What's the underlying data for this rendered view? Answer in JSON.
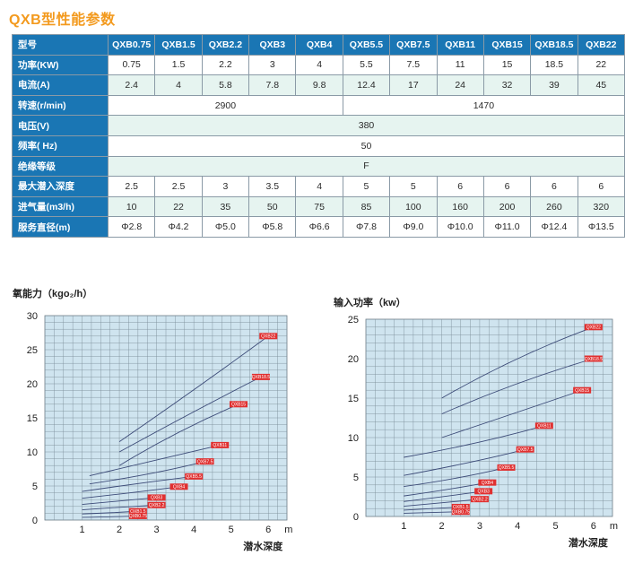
{
  "title": "QXB型性能参数",
  "table": {
    "header": [
      "型号",
      "QXB0.75",
      "QXB1.5",
      "QXB2.2",
      "QXB3",
      "QXB4",
      "QXB5.5",
      "QXB7.5",
      "QXB11",
      "QXB15",
      "QXB18.5",
      "QXB22"
    ],
    "rows": [
      {
        "label": "功率(KW)",
        "cells": [
          {
            "text": "0.75",
            "span": 1
          },
          {
            "text": "1.5",
            "span": 1
          },
          {
            "text": "2.2",
            "span": 1
          },
          {
            "text": "3",
            "span": 1
          },
          {
            "text": "4",
            "span": 1
          },
          {
            "text": "5.5",
            "span": 1
          },
          {
            "text": "7.5",
            "span": 1
          },
          {
            "text": "11",
            "span": 1
          },
          {
            "text": "15",
            "span": 1
          },
          {
            "text": "18.5",
            "span": 1
          },
          {
            "text": "22",
            "span": 1
          }
        ]
      },
      {
        "label": "电流(A)",
        "cells": [
          {
            "text": "2.4",
            "span": 1
          },
          {
            "text": "4",
            "span": 1
          },
          {
            "text": "5.8",
            "span": 1
          },
          {
            "text": "7.8",
            "span": 1
          },
          {
            "text": "9.8",
            "span": 1
          },
          {
            "text": "12.4",
            "span": 1
          },
          {
            "text": "17",
            "span": 1
          },
          {
            "text": "24",
            "span": 1
          },
          {
            "text": "32",
            "span": 1
          },
          {
            "text": "39",
            "span": 1
          },
          {
            "text": "45",
            "span": 1
          }
        ]
      },
      {
        "label": "转速(r/min)",
        "cells": [
          {
            "text": "2900",
            "span": 5
          },
          {
            "text": "1470",
            "span": 6
          }
        ]
      },
      {
        "label": "电压(V)",
        "cells": [
          {
            "text": "380",
            "span": 11
          }
        ]
      },
      {
        "label": "频率( Hz)",
        "cells": [
          {
            "text": "50",
            "span": 11
          }
        ]
      },
      {
        "label": "绝缘等级",
        "cells": [
          {
            "text": "F",
            "span": 11
          }
        ]
      },
      {
        "label": "最大潜入深度",
        "cells": [
          {
            "text": "2.5",
            "span": 1
          },
          {
            "text": "2.5",
            "span": 1
          },
          {
            "text": "3",
            "span": 1
          },
          {
            "text": "3.5",
            "span": 1
          },
          {
            "text": "4",
            "span": 1
          },
          {
            "text": "5",
            "span": 1
          },
          {
            "text": "5",
            "span": 1
          },
          {
            "text": "6",
            "span": 1
          },
          {
            "text": "6",
            "span": 1
          },
          {
            "text": "6",
            "span": 1
          },
          {
            "text": "6",
            "span": 1
          }
        ]
      },
      {
        "label": "进气量(m3/h)",
        "cells": [
          {
            "text": "10",
            "span": 1
          },
          {
            "text": "22",
            "span": 1
          },
          {
            "text": "35",
            "span": 1
          },
          {
            "text": "50",
            "span": 1
          },
          {
            "text": "75",
            "span": 1
          },
          {
            "text": "85",
            "span": 1
          },
          {
            "text": "100",
            "span": 1
          },
          {
            "text": "160",
            "span": 1
          },
          {
            "text": "200",
            "span": 1
          },
          {
            "text": "260",
            "span": 1
          },
          {
            "text": "320",
            "span": 1
          }
        ]
      },
      {
        "label": "服务直径(m)",
        "cells": [
          {
            "text": "Φ2.8",
            "span": 1
          },
          {
            "text": "Φ4.2",
            "span": 1
          },
          {
            "text": "Φ5.0",
            "span": 1
          },
          {
            "text": "Φ5.8",
            "span": 1
          },
          {
            "text": "Φ6.6",
            "span": 1
          },
          {
            "text": "Φ7.8",
            "span": 1
          },
          {
            "text": "Φ9.0",
            "span": 1
          },
          {
            "text": "Φ10.0",
            "span": 1
          },
          {
            "text": "Φ11.0",
            "span": 1
          },
          {
            "text": "Φ12.4",
            "span": 1
          },
          {
            "text": "Φ13.5",
            "span": 1
          }
        ]
      }
    ]
  },
  "chart_data": [
    {
      "type": "line",
      "ylabel": "氧能力（kgo₂/h）",
      "xlabel": "潜水深度",
      "x_unit": "m",
      "xlim": [
        0,
        6.5
      ],
      "ylim": [
        0,
        30
      ],
      "xticks": [
        1,
        2,
        3,
        4,
        5,
        6
      ],
      "yticks": [
        0,
        5,
        10,
        15,
        20,
        25,
        30
      ],
      "grid": true,
      "series": [
        {
          "name": "QXB22",
          "points": [
            [
              2,
              11.5
            ],
            [
              4,
              19
            ],
            [
              6,
              27
            ]
          ]
        },
        {
          "name": "QXB18.5",
          "points": [
            [
              2,
              10
            ],
            [
              4,
              16
            ],
            [
              5.8,
              21
            ]
          ]
        },
        {
          "name": "QXB15",
          "points": [
            [
              2,
              8
            ],
            [
              3.5,
              13
            ],
            [
              5.2,
              17
            ]
          ]
        },
        {
          "name": "QXB11",
          "points": [
            [
              1.2,
              6.5
            ],
            [
              3,
              8.8
            ],
            [
              4.7,
              11
            ]
          ]
        },
        {
          "name": "QXB7.5",
          "points": [
            [
              1.2,
              5.3
            ],
            [
              3,
              6.8
            ],
            [
              4.3,
              8.6
            ]
          ]
        },
        {
          "name": "QXB5.5",
          "points": [
            [
              1,
              4.2
            ],
            [
              2.5,
              5.4
            ],
            [
              4,
              6.4
            ]
          ]
        },
        {
          "name": "QXB4",
          "points": [
            [
              1,
              3.2
            ],
            [
              2.5,
              4.1
            ],
            [
              3.6,
              4.9
            ]
          ]
        },
        {
          "name": "QXB3",
          "points": [
            [
              1,
              2.3
            ],
            [
              2.2,
              2.9
            ],
            [
              3,
              3.3
            ]
          ]
        },
        {
          "name": "QXB2.2",
          "points": [
            [
              1,
              1.5
            ],
            [
              2,
              1.9
            ],
            [
              3,
              2.2
            ]
          ]
        },
        {
          "name": "QXB1.5",
          "points": [
            [
              1,
              0.9
            ],
            [
              2,
              1.1
            ],
            [
              2.5,
              1.3
            ]
          ]
        },
        {
          "name": "QXB0.75",
          "points": [
            [
              1,
              0.4
            ],
            [
              2,
              0.5
            ],
            [
              2.5,
              0.6
            ]
          ]
        }
      ]
    },
    {
      "type": "line",
      "ylabel": "输入功率（kw）",
      "xlabel": "潜水深度",
      "x_unit": "m",
      "xlim": [
        0,
        6.5
      ],
      "ylim": [
        0,
        25
      ],
      "xticks": [
        1,
        2,
        3,
        4,
        5,
        6
      ],
      "yticks": [
        0,
        5,
        10,
        15,
        20,
        25
      ],
      "grid": true,
      "series": [
        {
          "name": "QXB22",
          "points": [
            [
              2,
              15
            ],
            [
              4,
              20.5
            ],
            [
              6,
              24
            ]
          ]
        },
        {
          "name": "QXB18.5",
          "points": [
            [
              2,
              13
            ],
            [
              4,
              17.2
            ],
            [
              6,
              20
            ]
          ]
        },
        {
          "name": "QXB15",
          "points": [
            [
              2,
              10
            ],
            [
              4,
              13.2
            ],
            [
              5.7,
              16
            ]
          ]
        },
        {
          "name": "QXB11",
          "points": [
            [
              1,
              7.5
            ],
            [
              3,
              9.2
            ],
            [
              4.7,
              11.5
            ]
          ]
        },
        {
          "name": "QXB7.5",
          "points": [
            [
              1,
              5.2
            ],
            [
              3,
              7
            ],
            [
              4.2,
              8.5
            ]
          ]
        },
        {
          "name": "QXB5.5",
          "points": [
            [
              1,
              3.8
            ],
            [
              2.5,
              4.8
            ],
            [
              3.7,
              6.2
            ]
          ]
        },
        {
          "name": "QXB4",
          "points": [
            [
              1,
              2.6
            ],
            [
              2.2,
              3.4
            ],
            [
              3.2,
              4.3
            ]
          ]
        },
        {
          "name": "QXB3",
          "points": [
            [
              1,
              1.9
            ],
            [
              2.2,
              2.6
            ],
            [
              3.1,
              3.2
            ]
          ]
        },
        {
          "name": "QXB2.2",
          "points": [
            [
              1,
              1.3
            ],
            [
              2.2,
              1.8
            ],
            [
              3,
              2.2
            ]
          ]
        },
        {
          "name": "QXB1.5",
          "points": [
            [
              1,
              0.8
            ],
            [
              1.8,
              1.0
            ],
            [
              2.5,
              1.2
            ]
          ]
        },
        {
          "name": "QXB0.75",
          "points": [
            [
              1,
              0.4
            ],
            [
              1.8,
              0.5
            ],
            [
              2.5,
              0.6
            ]
          ]
        }
      ]
    }
  ]
}
